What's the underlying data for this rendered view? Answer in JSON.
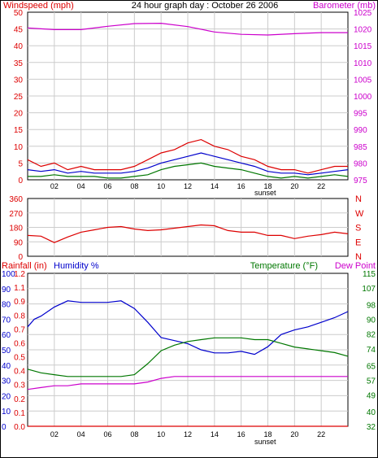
{
  "colors": {
    "red": "#dd0000",
    "blue": "#0000cc",
    "green": "#007700",
    "magenta": "#cc00cc",
    "grid": "#cccccc",
    "axis": "#000000"
  },
  "chart_data": [
    {
      "type": "line",
      "panel": "wind-barometer",
      "title": "24 hour graph day : October 26 2006",
      "left_label": "Windspeed (mph)",
      "right_label": "Barometer (mb)",
      "x_ticks": [
        "02",
        "04",
        "06",
        "08",
        "10",
        "12",
        "14",
        "16",
        "18",
        "20",
        "22"
      ],
      "x_range": [
        0,
        24
      ],
      "sunset_label": "sunset",
      "sunset_x": 17.8,
      "left_axis": {
        "range": [
          0,
          50
        ],
        "ticks": [
          0,
          5,
          10,
          15,
          20,
          25,
          30,
          35,
          40,
          45,
          50
        ]
      },
      "right_axis": {
        "range": [
          975,
          1025
        ],
        "ticks": [
          975,
          980,
          985,
          990,
          995,
          1000,
          1005,
          1010,
          1015,
          1020,
          1025
        ]
      },
      "series": [
        {
          "axis": "right",
          "color": "#cc00cc",
          "x": [
            0,
            2,
            4,
            6,
            8,
            10,
            12,
            14,
            16,
            18,
            20,
            22,
            24
          ],
          "y": [
            1020.3,
            1019.8,
            1019.8,
            1020.8,
            1021.6,
            1021.7,
            1020.7,
            1019.1,
            1018.4,
            1018.2,
            1018.6,
            1018.9,
            1018.9
          ]
        },
        {
          "axis": "left",
          "color": "#dd0000",
          "x": [
            0,
            1,
            2,
            3,
            4,
            5,
            6,
            7,
            8,
            9,
            10,
            11,
            12,
            13,
            14,
            15,
            16,
            17,
            18,
            19,
            20,
            21,
            22,
            23,
            24
          ],
          "y": [
            6,
            4,
            5,
            3,
            4,
            3,
            3,
            3,
            4,
            6,
            8,
            9,
            11,
            12,
            10,
            9,
            7,
            6,
            4,
            3,
            3,
            2,
            3,
            4,
            4
          ]
        },
        {
          "axis": "left",
          "color": "#0000cc",
          "x": [
            0,
            1,
            2,
            3,
            4,
            5,
            6,
            7,
            8,
            9,
            10,
            11,
            12,
            13,
            14,
            15,
            16,
            17,
            18,
            19,
            20,
            21,
            22,
            23,
            24
          ],
          "y": [
            3,
            2.5,
            3,
            2,
            2.5,
            2,
            2,
            2,
            2.5,
            3.5,
            5,
            6,
            7,
            8,
            7,
            6,
            5,
            4,
            2.5,
            2,
            2,
            1.5,
            2,
            2.5,
            3
          ]
        },
        {
          "axis": "left",
          "color": "#007700",
          "x": [
            0,
            1,
            2,
            3,
            4,
            5,
            6,
            7,
            8,
            9,
            10,
            11,
            12,
            13,
            14,
            15,
            16,
            17,
            18,
            19,
            20,
            21,
            22,
            23,
            24
          ],
          "y": [
            1,
            1,
            1.5,
            1,
            1,
            1,
            0.5,
            0.5,
            1,
            1.5,
            3,
            4,
            4.5,
            5,
            4,
            3.5,
            3,
            2,
            1,
            0.5,
            1,
            0.5,
            1,
            1.5,
            1
          ]
        }
      ]
    },
    {
      "type": "line",
      "panel": "wind-direction",
      "x_range": [
        0,
        24
      ],
      "left_axis": {
        "range": [
          0,
          360
        ],
        "ticks": [
          0,
          90,
          180,
          270,
          360
        ]
      },
      "right_labels": [
        "N",
        "W",
        "S",
        "E",
        "N"
      ],
      "series": [
        {
          "color": "#dd0000",
          "x": [
            0,
            1,
            2,
            3,
            4,
            5,
            6,
            7,
            8,
            9,
            10,
            11,
            12,
            13,
            14,
            15,
            16,
            17,
            18,
            19,
            20,
            21,
            22,
            23,
            24
          ],
          "y": [
            130,
            125,
            85,
            120,
            150,
            165,
            180,
            185,
            170,
            160,
            165,
            175,
            185,
            195,
            190,
            160,
            150,
            150,
            130,
            130,
            110,
            125,
            135,
            150,
            140
          ]
        }
      ]
    },
    {
      "type": "line",
      "panel": "rain-humidity-temperature",
      "labels": {
        "rainfall": "Rainfall (in)",
        "humidity": "Humidity %",
        "temperature": "Temperature (°F)",
        "dew_point": "Dew Point"
      },
      "x_ticks": [
        "02",
        "04",
        "06",
        "08",
        "10",
        "12",
        "14",
        "16",
        "18",
        "20",
        "22"
      ],
      "x_range": [
        0,
        24
      ],
      "sunset_label": "sunset",
      "sunset_x": 17.8,
      "humidity_axis": {
        "range": [
          0,
          100
        ],
        "ticks": [
          0,
          10,
          20,
          30,
          40,
          50,
          60,
          70,
          80,
          90,
          100
        ]
      },
      "rainfall_axis": {
        "range": [
          0,
          1.2
        ],
        "ticks": [
          "0.0",
          "0.1",
          "0.2",
          "0.3",
          "0.4",
          "0.5",
          "0.6",
          "0.7",
          "0.8",
          "0.9",
          "1.1",
          "1.2"
        ]
      },
      "temperature_axis": {
        "range": [
          32,
          115
        ],
        "ticks": [
          32,
          40,
          49,
          57,
          65,
          74,
          82,
          90,
          98,
          107,
          115
        ]
      },
      "series": [
        {
          "name": "Humidity %",
          "axis": "humidity",
          "color": "#0000cc",
          "x": [
            0,
            0.5,
            1,
            2,
            3,
            4,
            5,
            6,
            7,
            8,
            9,
            10,
            11,
            12,
            13,
            14,
            15,
            16,
            17,
            18,
            19,
            20,
            21,
            22,
            23,
            24
          ],
          "y": [
            65,
            70,
            72,
            78,
            82,
            81,
            81,
            81,
            82,
            77,
            68,
            58,
            56,
            54,
            50,
            48,
            48,
            49,
            47,
            52,
            60,
            63,
            65,
            68,
            71,
            75
          ]
        },
        {
          "name": "Temperature (°F)",
          "axis": "temperature",
          "color": "#007700",
          "x": [
            0,
            1,
            2,
            3,
            4,
            5,
            6,
            7,
            8,
            9,
            10,
            11,
            12,
            13,
            14,
            15,
            16,
            17,
            18,
            19,
            20,
            21,
            22,
            23,
            24
          ],
          "y": [
            63,
            61,
            60,
            59,
            59,
            59,
            59,
            59,
            60,
            66,
            73,
            76,
            78,
            79,
            80,
            80,
            80,
            79,
            79,
            77,
            75,
            74,
            73,
            72,
            70
          ]
        },
        {
          "name": "Dew Point",
          "axis": "temperature",
          "color": "#cc00cc",
          "x": [
            0,
            1,
            2,
            3,
            4,
            5,
            6,
            7,
            8,
            9,
            10,
            11,
            12,
            13,
            14,
            15,
            16,
            17,
            18,
            19,
            20,
            21,
            22,
            23,
            24
          ],
          "y": [
            52,
            53,
            54,
            54,
            55,
            55,
            55,
            55,
            55,
            56,
            58,
            59,
            59,
            59,
            59,
            59,
            59,
            59,
            59,
            59,
            59,
            59,
            59,
            59,
            59
          ]
        },
        {
          "name": "Rainfall (in)",
          "axis": "rainfall",
          "color": "#dd0000",
          "x": [
            0,
            24
          ],
          "y": [
            0,
            0
          ]
        }
      ]
    }
  ]
}
